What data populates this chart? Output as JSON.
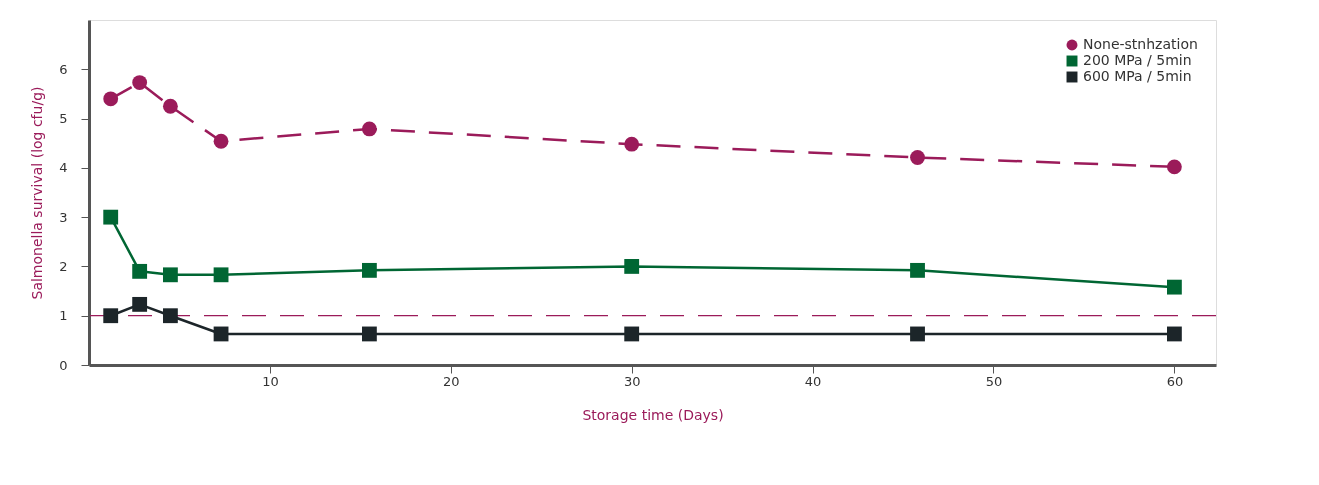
{
  "chart_data": {
    "type": "line",
    "xlabel": "Storage time (Days)",
    "ylabel": "Salmonella survival (log cfu/g)",
    "x": [
      1.2,
      2.8,
      4.5,
      7.3,
      15.5,
      30,
      45.8,
      60
    ],
    "xlim": [
      0,
      62.3
    ],
    "xticks": [
      10,
      20,
      30,
      40,
      50,
      60
    ],
    "ylim": [
      0,
      7
    ],
    "yticks": [
      0,
      1,
      2,
      3,
      4,
      5,
      6
    ],
    "grid": false,
    "legend": "top right",
    "series": [
      {
        "name": "None-stnhzation",
        "color": "#9b1b5a",
        "marker": "circle",
        "line_style": "dashed",
        "values": [
          5.4,
          5.73,
          5.25,
          4.54,
          4.79,
          4.48,
          4.21,
          4.02
        ]
      },
      {
        "name": "200 MPa / 5min",
        "color": "#006633",
        "marker": "square",
        "line_style": "solid",
        "values": [
          3.0,
          1.9,
          1.83,
          1.83,
          1.92,
          2.0,
          1.92,
          1.58
        ]
      },
      {
        "name": "600 MPa / 5min",
        "color": "#1c2529",
        "marker": "square",
        "line_style": "solid",
        "values": [
          1.0,
          1.23,
          1.0,
          0.63,
          0.63,
          0.63,
          0.63,
          0.63
        ]
      }
    ],
    "ref_lines": [
      {
        "axis": "y",
        "value": 1,
        "label": null,
        "color": "#9b1b5a",
        "line_style": "dashed"
      }
    ]
  }
}
